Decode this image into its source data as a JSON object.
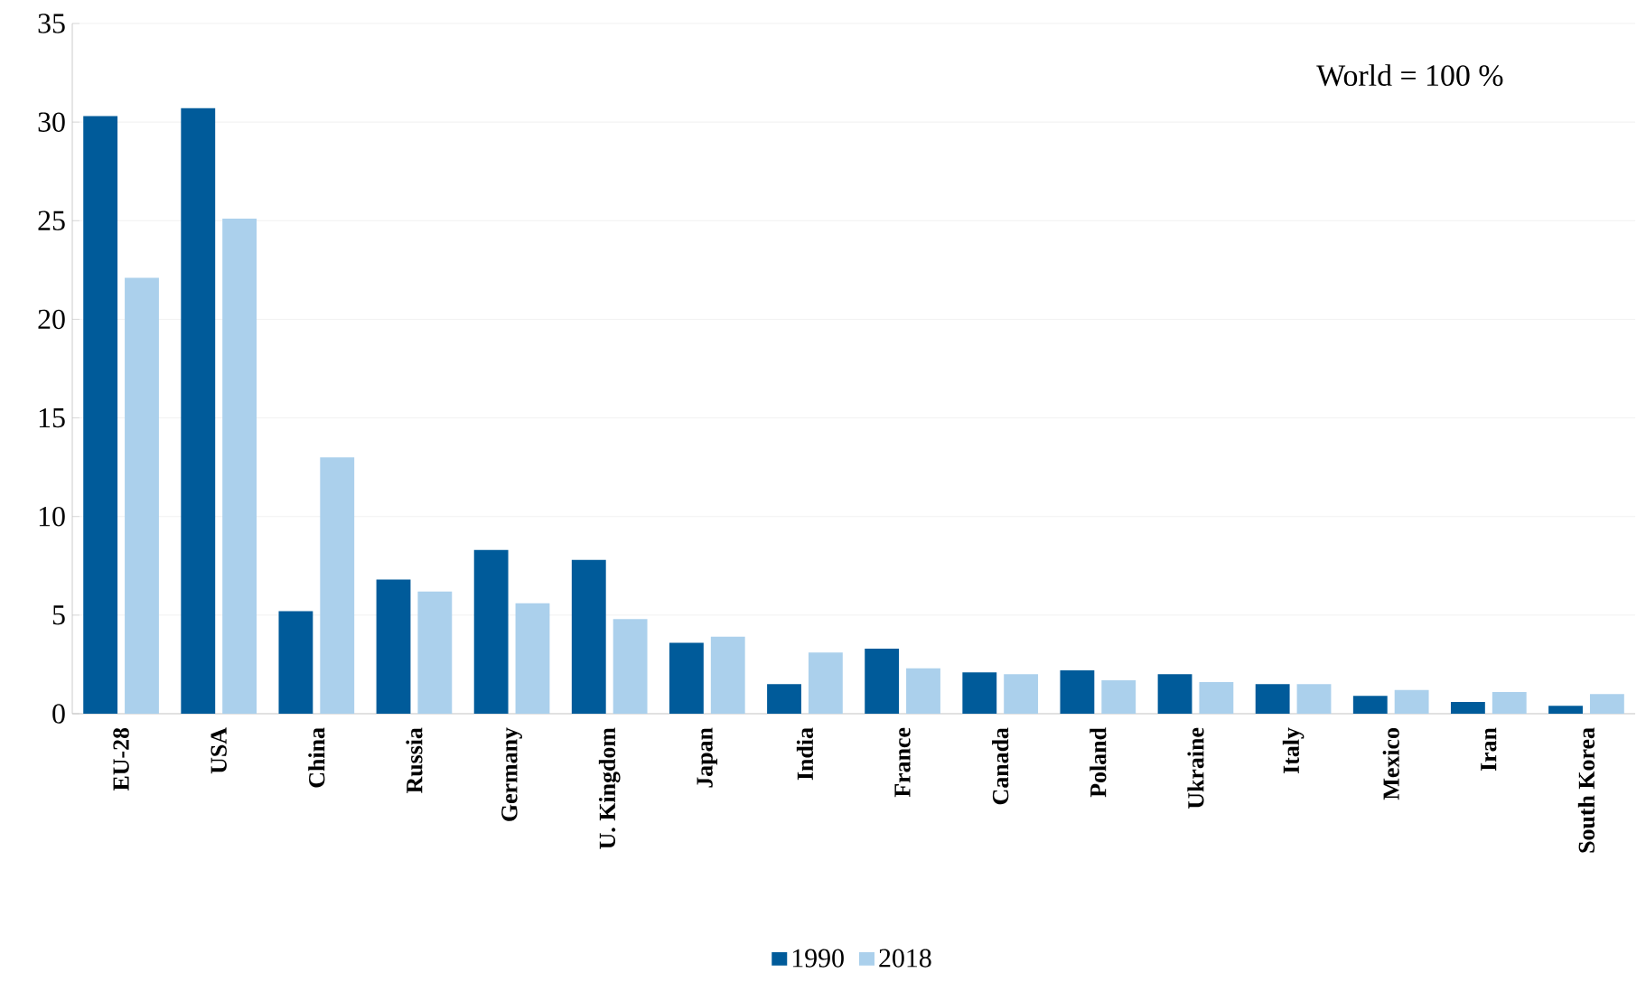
{
  "chart_data": {
    "type": "bar",
    "categories": [
      "EU-28",
      "USA",
      "China",
      "Russia",
      "Germany",
      "U. Kingdom",
      "Japan",
      "India",
      "France",
      "Canada",
      "Poland",
      "Ukraine",
      "Italy",
      "Mexico",
      "Iran",
      "South Korea"
    ],
    "series": [
      {
        "name": "1990",
        "color": "#005b9a",
        "values": [
          30.3,
          30.7,
          5.2,
          6.8,
          8.3,
          7.8,
          3.6,
          1.5,
          3.3,
          2.1,
          2.2,
          2.0,
          1.5,
          0.9,
          0.6,
          0.4
        ]
      },
      {
        "name": "2018",
        "color": "#abd0ec",
        "values": [
          22.1,
          25.1,
          13.0,
          6.2,
          5.6,
          4.8,
          3.9,
          3.1,
          2.3,
          2.0,
          1.7,
          1.6,
          1.5,
          1.2,
          1.1,
          1.0
        ]
      }
    ],
    "ylim": [
      0,
      35
    ],
    "yticks": [
      0,
      5,
      10,
      15,
      20,
      25,
      30,
      35
    ],
    "grid": "y",
    "legend": "bottom",
    "annotations": [
      "World = 100 %"
    ]
  }
}
